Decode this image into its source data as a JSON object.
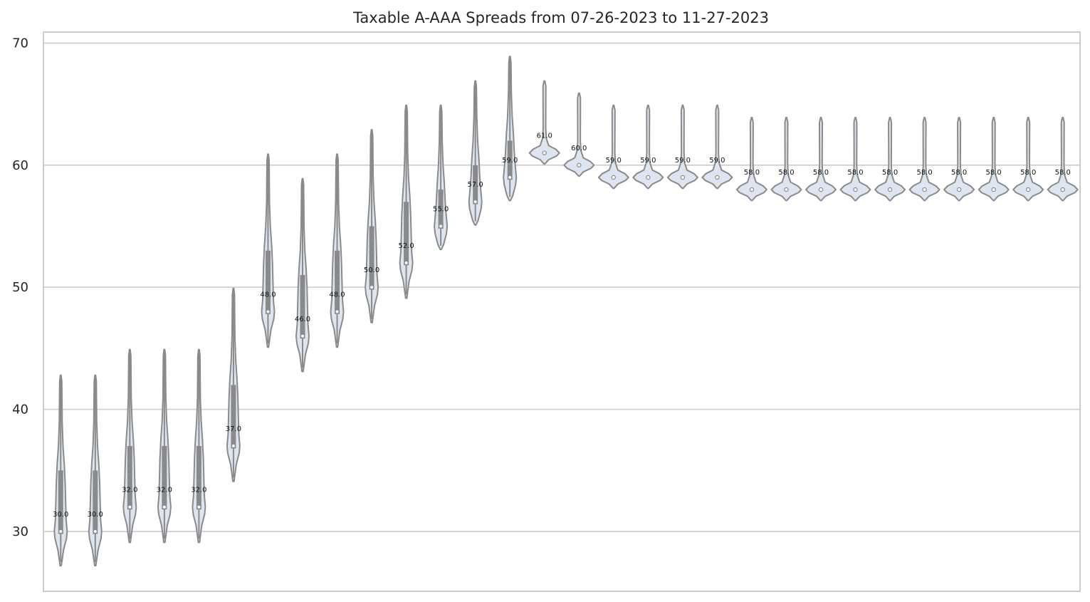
{
  "chart_data": {
    "type": "violin",
    "title": "Taxable A-AAA Spreads from 07-26-2023 to 11-27-2023",
    "xlabel": "",
    "ylabel": "",
    "ylim": [
      25.1,
      70.9
    ],
    "yticks": [
      30,
      40,
      50,
      60,
      70
    ],
    "grid": true,
    "violin_color": "#dde6f0",
    "edge_color": "#8a8a8a",
    "grid_color": "#cccccc",
    "violins": [
      {
        "median": 30,
        "min": 27.2,
        "max": 42.8,
        "q1": 29.8,
        "q3": 35,
        "median_label": "30.0"
      },
      {
        "median": 30,
        "min": 27.2,
        "max": 42.8,
        "q1": 29.8,
        "q3": 35,
        "median_label": "30.0"
      },
      {
        "median": 32,
        "min": 29.1,
        "max": 44.9,
        "q1": 31.8,
        "q3": 37,
        "median_label": "32.0"
      },
      {
        "median": 32,
        "min": 29.1,
        "max": 44.9,
        "q1": 31.8,
        "q3": 37,
        "median_label": "32.0"
      },
      {
        "median": 32,
        "min": 29.1,
        "max": 44.9,
        "q1": 31.8,
        "q3": 37,
        "median_label": "32.0"
      },
      {
        "median": 37,
        "min": 34.1,
        "max": 49.9,
        "q1": 36.8,
        "q3": 42,
        "median_label": "37.0"
      },
      {
        "median": 48,
        "min": 45.1,
        "max": 60.9,
        "q1": 47.8,
        "q3": 53,
        "median_label": "48.0"
      },
      {
        "median": 46,
        "min": 43.1,
        "max": 58.9,
        "q1": 45.8,
        "q3": 51,
        "median_label": "46.0"
      },
      {
        "median": 48,
        "min": 45.1,
        "max": 60.9,
        "q1": 47.8,
        "q3": 53,
        "median_label": "48.0"
      },
      {
        "median": 50,
        "min": 47.1,
        "max": 62.9,
        "q1": 49.8,
        "q3": 55,
        "median_label": "50.0"
      },
      {
        "median": 52,
        "min": 49.1,
        "max": 64.9,
        "q1": 51.8,
        "q3": 57,
        "median_label": "52.0"
      },
      {
        "median": 55,
        "min": 53.1,
        "max": 64.9,
        "q1": 54.8,
        "q3": 58,
        "median_label": "55.0"
      },
      {
        "median": 57,
        "min": 55.1,
        "max": 66.9,
        "q1": 56.8,
        "q3": 60,
        "median_label": "57.0"
      },
      {
        "median": 59,
        "min": 57.1,
        "max": 68.9,
        "q1": 58.8,
        "q3": 62,
        "median_label": "59.0"
      },
      {
        "median": 61,
        "min": 60.1,
        "max": 66.9,
        "q1": 61,
        "q3": 61,
        "median_label": "61.0"
      },
      {
        "median": 60,
        "min": 59.1,
        "max": 65.9,
        "q1": 60,
        "q3": 60,
        "median_label": "60.0"
      },
      {
        "median": 59,
        "min": 58.1,
        "max": 64.9,
        "q1": 59,
        "q3": 59,
        "median_label": "59.0"
      },
      {
        "median": 59,
        "min": 58.1,
        "max": 64.9,
        "q1": 59,
        "q3": 59,
        "median_label": "59.0"
      },
      {
        "median": 59,
        "min": 58.1,
        "max": 64.9,
        "q1": 59,
        "q3": 59,
        "median_label": "59.0"
      },
      {
        "median": 59,
        "min": 58.1,
        "max": 64.9,
        "q1": 59,
        "q3": 59,
        "median_label": "59.0"
      },
      {
        "median": 58,
        "min": 57.1,
        "max": 63.9,
        "q1": 58,
        "q3": 58,
        "median_label": "58.0"
      },
      {
        "median": 58,
        "min": 57.1,
        "max": 63.9,
        "q1": 58,
        "q3": 58,
        "median_label": "58.0"
      },
      {
        "median": 58,
        "min": 57.1,
        "max": 63.9,
        "q1": 58,
        "q3": 58,
        "median_label": "58.0"
      },
      {
        "median": 58,
        "min": 57.1,
        "max": 63.9,
        "q1": 58,
        "q3": 58,
        "median_label": "58.0"
      },
      {
        "median": 58,
        "min": 57.1,
        "max": 63.9,
        "q1": 58,
        "q3": 58,
        "median_label": "58.0"
      },
      {
        "median": 58,
        "min": 57.1,
        "max": 63.9,
        "q1": 58,
        "q3": 58,
        "median_label": "58.0"
      },
      {
        "median": 58,
        "min": 57.1,
        "max": 63.9,
        "q1": 58,
        "q3": 58,
        "median_label": "58.0"
      },
      {
        "median": 58,
        "min": 57.1,
        "max": 63.9,
        "q1": 58,
        "q3": 58,
        "median_label": "58.0"
      },
      {
        "median": 58,
        "min": 57.1,
        "max": 63.9,
        "q1": 58,
        "q3": 58,
        "median_label": "58.0"
      },
      {
        "median": 58,
        "min": 57.1,
        "max": 63.9,
        "q1": 58,
        "q3": 58,
        "median_label": "58.0"
      }
    ]
  }
}
